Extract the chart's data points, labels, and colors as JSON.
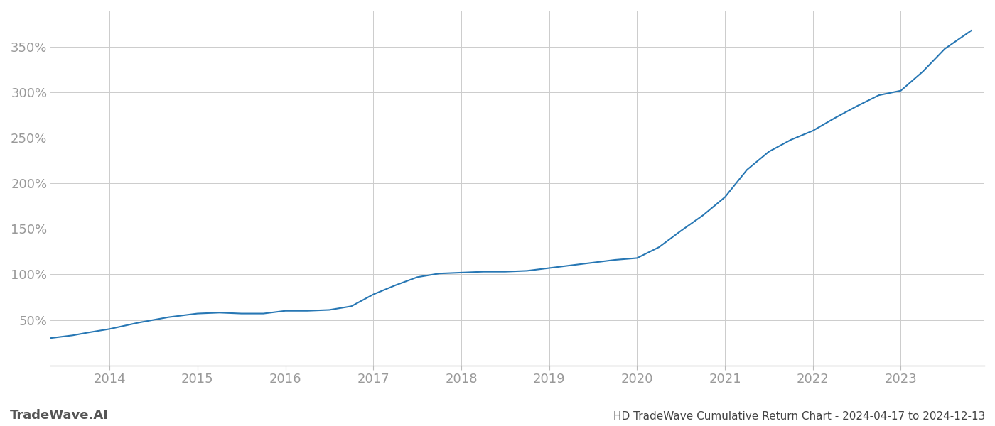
{
  "title": "HD TradeWave Cumulative Return Chart - 2024-04-17 to 2024-12-13",
  "watermark": "TradeWave.AI",
  "line_color": "#2777b4",
  "background_color": "#ffffff",
  "grid_color": "#cccccc",
  "x_years": [
    2014,
    2015,
    2016,
    2017,
    2018,
    2019,
    2020,
    2021,
    2022,
    2023
  ],
  "x_data": [
    2013.33,
    2013.58,
    2013.75,
    2014.0,
    2014.33,
    2014.67,
    2015.0,
    2015.25,
    2015.5,
    2015.75,
    2016.0,
    2016.25,
    2016.5,
    2016.75,
    2017.0,
    2017.25,
    2017.5,
    2017.75,
    2018.0,
    2018.25,
    2018.5,
    2018.75,
    2019.0,
    2019.25,
    2019.5,
    2019.75,
    2020.0,
    2020.25,
    2020.5,
    2020.75,
    2021.0,
    2021.25,
    2021.5,
    2021.75,
    2022.0,
    2022.25,
    2022.5,
    2022.75,
    2023.0,
    2023.25,
    2023.5,
    2023.8
  ],
  "y_data": [
    30,
    33,
    36,
    40,
    47,
    53,
    57,
    58,
    57,
    57,
    60,
    60,
    61,
    65,
    78,
    88,
    97,
    101,
    102,
    103,
    103,
    104,
    107,
    110,
    113,
    116,
    118,
    130,
    148,
    165,
    185,
    215,
    235,
    248,
    258,
    272,
    285,
    297,
    302,
    323,
    348,
    368
  ],
  "ylim": [
    0,
    390
  ],
  "yticks": [
    50,
    100,
    150,
    200,
    250,
    300,
    350
  ],
  "xlim": [
    2013.33,
    2023.95
  ],
  "tick_label_color": "#999999",
  "tick_fontsize": 13,
  "title_fontsize": 11,
  "watermark_fontsize": 13
}
